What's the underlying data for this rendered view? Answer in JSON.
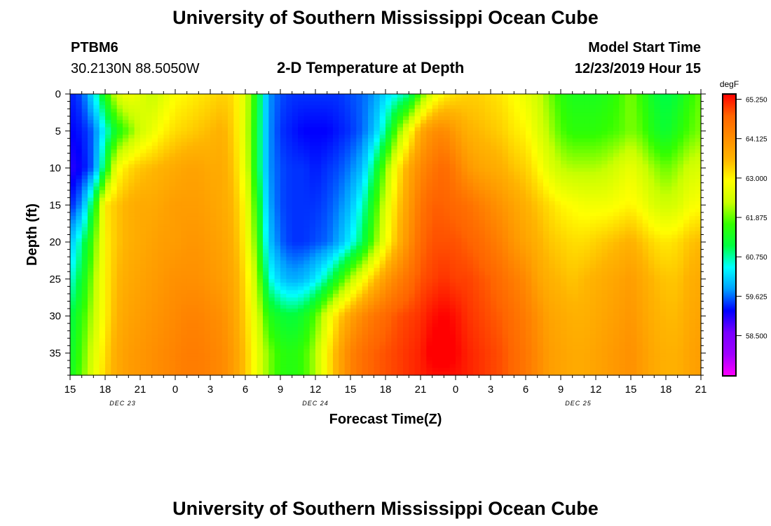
{
  "header": {
    "title": "University of Southern Mississippi Ocean Cube",
    "station_id": "PTBM6",
    "coordinates": "30.2130N 88.5050W",
    "plot_title": "2-D Temperature at Depth",
    "model_start_label": "Model Start Time",
    "model_start_value": "12/23/2019 Hour 15"
  },
  "footer": {
    "title": "University of Southern Mississippi Ocean Cube"
  },
  "chart_data": {
    "type": "heatmap",
    "xlabel": "Forecast Time(Z)",
    "ylabel": "Depth (ft)",
    "x_unit": "hours since model start",
    "x_range": [
      0,
      54
    ],
    "ylim": [
      38,
      0
    ],
    "x_tick_labels": [
      "15",
      "18",
      "21",
      "0",
      "3",
      "6",
      "9",
      "12",
      "15",
      "18",
      "21",
      "0",
      "3",
      "6",
      "9",
      "12",
      "15",
      "18",
      "21"
    ],
    "date_labels": [
      {
        "label": "DEC 23",
        "at_hour": 4.5
      },
      {
        "label": "DEC 24",
        "at_hour": 21
      },
      {
        "label": "DEC 25",
        "at_hour": 43.5
      }
    ],
    "y_ticks": [
      0,
      5,
      10,
      15,
      20,
      25,
      30,
      35
    ],
    "colorbar": {
      "unit": "degF",
      "min": 57.35,
      "max": 65.4,
      "tick_values": [
        65.25,
        64.125,
        63.0,
        61.875,
        60.75,
        59.625,
        58.5
      ],
      "tick_labels": [
        "65.250",
        "64.125",
        "63.000",
        "61.875",
        "60.750",
        "59.625",
        "58.500"
      ],
      "colors": [
        "#ff00ff",
        "#a000ff",
        "#7800ff",
        "#0000ff",
        "#00a0ff",
        "#00ffff",
        "#00ff40",
        "#32ff00",
        "#c8ff00",
        "#ffff00",
        "#ffb400",
        "#ff8c00",
        "#ff6400",
        "#ff0000"
      ]
    },
    "depths_ft": [
      0,
      5,
      10,
      15,
      20,
      25,
      30,
      35,
      38
    ],
    "times_hr": [
      0,
      1,
      2,
      3,
      4,
      5,
      6,
      7,
      8,
      9,
      10,
      11,
      12,
      13,
      14,
      15,
      16,
      17,
      18,
      19,
      20,
      21,
      22,
      23,
      24,
      25,
      26,
      27,
      28,
      29,
      30,
      31,
      32,
      33,
      34,
      35,
      36,
      37,
      38,
      39,
      40,
      41,
      42,
      43,
      44,
      45,
      46,
      47,
      48,
      49,
      50,
      51,
      52,
      53,
      54
    ],
    "temperature_degF": [
      [
        59.3,
        59.5,
        60.3,
        61.5,
        62.5,
        62.8,
        62.6,
        62.3,
        62.6,
        62.9,
        63.0,
        63.1,
        63.2,
        63.3,
        63.2,
        62.5,
        61.3,
        59.8,
        59.5,
        59.4,
        59.4,
        59.4,
        59.4,
        59.4,
        59.5,
        59.6,
        59.8,
        60.2,
        60.5,
        60.8,
        61.8,
        62.6,
        63.0,
        63.2,
        63.3,
        63.3,
        63.2,
        63.1,
        62.9,
        62.7,
        62.4,
        62.0,
        61.6,
        61.4,
        61.4,
        61.4,
        61.5,
        61.7,
        62.0,
        61.6,
        61.2,
        61.0,
        61.2,
        61.6,
        61.9
      ],
      [
        59.2,
        59.3,
        59.6,
        60.5,
        61.4,
        61.9,
        62.4,
        62.7,
        63.0,
        63.2,
        63.3,
        63.4,
        63.5,
        63.6,
        63.3,
        62.5,
        61.2,
        59.8,
        59.4,
        59.3,
        59.2,
        59.2,
        59.2,
        59.3,
        59.4,
        59.6,
        60.0,
        60.8,
        61.9,
        62.8,
        63.7,
        64.1,
        64.2,
        63.9,
        63.6,
        63.5,
        63.4,
        63.3,
        63.1,
        63.0,
        62.6,
        62.2,
        61.8,
        61.6,
        61.6,
        61.6,
        61.7,
        61.8,
        62.0,
        61.8,
        61.4,
        61.2,
        61.5,
        61.8,
        62.0
      ],
      [
        59.0,
        59.2,
        59.6,
        61.2,
        62.8,
        63.2,
        63.4,
        63.5,
        63.6,
        63.7,
        63.8,
        63.8,
        63.7,
        63.7,
        63.4,
        62.6,
        61.2,
        59.8,
        59.5,
        59.4,
        59.4,
        59.3,
        59.4,
        59.5,
        59.7,
        60.0,
        60.9,
        62.0,
        63.0,
        63.7,
        64.2,
        64.5,
        64.7,
        64.4,
        64.0,
        63.8,
        63.7,
        63.6,
        63.4,
        63.3,
        63.0,
        62.6,
        62.3,
        62.2,
        62.2,
        62.2,
        62.3,
        62.5,
        62.7,
        62.4,
        62.1,
        61.9,
        62.1,
        62.4,
        62.5
      ],
      [
        59.3,
        59.8,
        61.2,
        63.1,
        63.4,
        63.6,
        63.7,
        63.7,
        63.8,
        63.9,
        63.9,
        63.9,
        63.8,
        63.7,
        63.5,
        62.9,
        61.5,
        59.9,
        59.5,
        59.4,
        59.4,
        59.4,
        59.5,
        59.7,
        60.0,
        60.6,
        61.5,
        62.5,
        63.3,
        63.9,
        64.5,
        64.8,
        64.8,
        64.7,
        64.6,
        64.4,
        64.2,
        64.0,
        63.8,
        63.6,
        63.4,
        63.2,
        63.0,
        62.9,
        62.8,
        62.8,
        62.8,
        62.9,
        63.0,
        62.8,
        62.5,
        62.4,
        62.5,
        62.8,
        62.9
      ],
      [
        60.0,
        60.8,
        61.8,
        63.0,
        63.4,
        63.6,
        63.7,
        63.8,
        63.9,
        63.9,
        64.0,
        64.0,
        63.9,
        63.8,
        63.6,
        63.0,
        61.8,
        60.1,
        59.6,
        59.4,
        59.4,
        59.5,
        59.6,
        59.9,
        60.4,
        61.0,
        61.9,
        62.8,
        63.5,
        64.1,
        64.7,
        64.9,
        64.9,
        64.9,
        64.8,
        64.7,
        64.5,
        64.3,
        64.0,
        63.8,
        63.6,
        63.4,
        63.3,
        63.2,
        63.2,
        63.3,
        63.4,
        63.5,
        63.6,
        63.4,
        63.2,
        63.1,
        63.2,
        63.4,
        63.5
      ],
      [
        60.5,
        61.2,
        62.1,
        63.0,
        63.5,
        63.7,
        63.8,
        63.9,
        64.0,
        64.1,
        64.1,
        64.1,
        64.0,
        63.9,
        63.7,
        63.2,
        62.2,
        60.6,
        60.1,
        59.9,
        60.0,
        60.3,
        60.8,
        61.5,
        62.2,
        62.8,
        63.4,
        63.9,
        64.3,
        64.6,
        64.9,
        65.0,
        65.1,
        65.0,
        65.0,
        64.9,
        64.8,
        64.6,
        64.4,
        64.2,
        63.8,
        63.6,
        63.5,
        63.4,
        63.5,
        63.6,
        63.7,
        63.8,
        63.9,
        63.7,
        63.5,
        63.4,
        63.4,
        63.6,
        63.7
      ],
      [
        61.0,
        61.6,
        62.3,
        63.0,
        63.6,
        63.8,
        63.9,
        64.0,
        64.1,
        64.2,
        64.3,
        64.3,
        64.2,
        64.1,
        63.8,
        63.3,
        62.5,
        61.5,
        61.2,
        61.1,
        61.3,
        61.8,
        62.6,
        63.3,
        63.8,
        64.2,
        64.5,
        64.7,
        64.9,
        65.0,
        65.1,
        65.3,
        65.4,
        65.3,
        65.1,
        65.0,
        64.9,
        64.8,
        64.6,
        64.4,
        64.1,
        63.8,
        63.7,
        63.6,
        63.6,
        63.7,
        63.8,
        63.9,
        64.0,
        63.8,
        63.6,
        63.5,
        63.5,
        63.7,
        63.8
      ],
      [
        61.2,
        61.8,
        62.5,
        63.2,
        63.7,
        63.9,
        64.0,
        64.1,
        64.2,
        64.3,
        64.4,
        64.4,
        64.3,
        64.2,
        63.9,
        63.4,
        62.7,
        62.0,
        61.6,
        61.5,
        61.7,
        62.2,
        63.0,
        63.7,
        64.3,
        64.6,
        64.8,
        64.9,
        65.0,
        65.1,
        65.2,
        65.5,
        65.6,
        65.4,
        65.2,
        65.1,
        65.0,
        64.9,
        64.7,
        64.5,
        64.2,
        63.9,
        63.8,
        63.7,
        63.7,
        63.8,
        63.9,
        64.0,
        64.1,
        63.9,
        63.7,
        63.6,
        63.6,
        63.8,
        63.9
      ],
      [
        61.3,
        61.9,
        62.6,
        63.3,
        63.7,
        63.9,
        64.0,
        64.1,
        64.2,
        64.3,
        64.4,
        64.4,
        64.3,
        64.2,
        63.9,
        63.4,
        62.7,
        62.0,
        61.6,
        61.5,
        61.7,
        62.2,
        63.0,
        63.7,
        64.3,
        64.6,
        64.8,
        64.9,
        65.0,
        65.1,
        65.2,
        65.3,
        65.3,
        65.3,
        65.2,
        65.1,
        65.0,
        64.9,
        64.7,
        64.5,
        64.2,
        63.9,
        63.8,
        63.7,
        63.7,
        63.8,
        63.9,
        64.0,
        64.1,
        63.9,
        63.7,
        63.6,
        63.6,
        63.8,
        63.9
      ]
    ]
  }
}
